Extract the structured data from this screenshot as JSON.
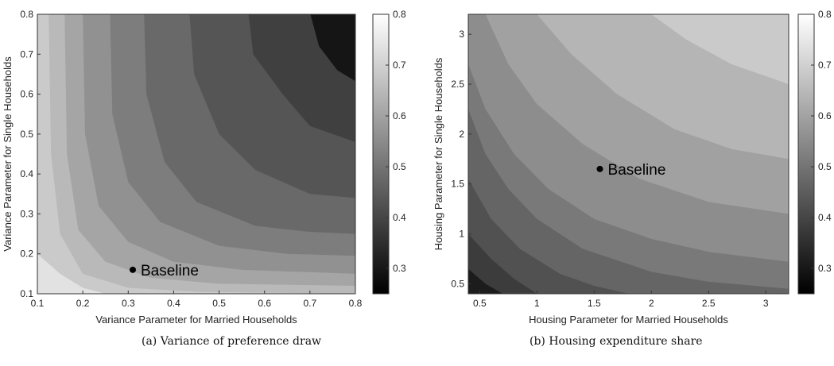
{
  "chart_data": [
    {
      "type": "contour",
      "caption": "(a) Variance of preference draw",
      "xlabel": "Variance Parameter for Married Households",
      "ylabel": "Variance  Parameter for Single Households",
      "xlim": [
        0.1,
        0.8
      ],
      "ylim": [
        0.1,
        0.8
      ],
      "xticks": [
        "0.1",
        "0.2",
        "0.3",
        "0.4",
        "0.5",
        "0.6",
        "0.7",
        "0.8"
      ],
      "yticks": [
        "0.1",
        "0.2",
        "0.3",
        "0.4",
        "0.5",
        "0.6",
        "0.7",
        "0.8"
      ],
      "colorbar": {
        "min": 0.25,
        "max": 0.8,
        "ticks": [
          "0.3",
          "0.4",
          "0.5",
          "0.6",
          "0.7",
          "0.8"
        ]
      },
      "trend": "decreasing",
      "color_hi": "#f2f2f2",
      "color_lo": "#141414",
      "contour_levels": [
        {
          "level": 0.72,
          "points": [
            [
              0.1,
              0.2
            ],
            [
              0.15,
              0.15
            ],
            [
              0.2,
              0.115
            ],
            [
              0.25,
              0.1
            ]
          ]
        },
        {
          "level": 0.68,
          "points": [
            [
              0.125,
              0.8
            ],
            [
              0.13,
              0.45
            ],
            [
              0.15,
              0.25
            ],
            [
              0.2,
              0.15
            ],
            [
              0.3,
              0.115
            ],
            [
              0.45,
              0.105
            ],
            [
              0.8,
              0.1
            ]
          ]
        },
        {
          "level": 0.63,
          "points": [
            [
              0.16,
              0.8
            ],
            [
              0.165,
              0.45
            ],
            [
              0.19,
              0.26
            ],
            [
              0.25,
              0.18
            ],
            [
              0.35,
              0.14
            ],
            [
              0.5,
              0.125
            ],
            [
              0.8,
              0.12
            ]
          ]
        },
        {
          "level": 0.58,
          "points": [
            [
              0.2,
              0.8
            ],
            [
              0.205,
              0.5
            ],
            [
              0.235,
              0.32
            ],
            [
              0.3,
              0.23
            ],
            [
              0.4,
              0.18
            ],
            [
              0.55,
              0.16
            ],
            [
              0.8,
              0.15
            ]
          ]
        },
        {
          "level": 0.53,
          "points": [
            [
              0.26,
              0.8
            ],
            [
              0.265,
              0.55
            ],
            [
              0.3,
              0.38
            ],
            [
              0.37,
              0.28
            ],
            [
              0.5,
              0.22
            ],
            [
              0.65,
              0.2
            ],
            [
              0.8,
              0.195
            ]
          ]
        },
        {
          "level": 0.48,
          "points": [
            [
              0.335,
              0.8
            ],
            [
              0.34,
              0.6
            ],
            [
              0.38,
              0.43
            ],
            [
              0.45,
              0.33
            ],
            [
              0.58,
              0.27
            ],
            [
              0.7,
              0.255
            ],
            [
              0.8,
              0.25
            ]
          ]
        },
        {
          "level": 0.43,
          "points": [
            [
              0.435,
              0.8
            ],
            [
              0.445,
              0.65
            ],
            [
              0.5,
              0.5
            ],
            [
              0.58,
              0.41
            ],
            [
              0.7,
              0.35
            ],
            [
              0.8,
              0.34
            ]
          ]
        },
        {
          "level": 0.38,
          "points": [
            [
              0.565,
              0.8
            ],
            [
              0.575,
              0.7
            ],
            [
              0.64,
              0.6
            ],
            [
              0.7,
              0.52
            ],
            [
              0.8,
              0.48
            ]
          ]
        },
        {
          "level": 0.33,
          "points": [
            [
              0.8,
              0.8
            ],
            [
              0.8,
              0.8
            ]
          ]
        }
      ],
      "baseline": {
        "x": 0.31,
        "y": 0.16,
        "label": "Baseline"
      }
    },
    {
      "type": "contour",
      "caption": "(b) Housing expenditure share",
      "xlabel": "Housing Parameter for Married Households",
      "ylabel": "Housing Parameter for Single Households",
      "xlim": [
        0.4,
        3.2
      ],
      "ylim": [
        0.4,
        3.2
      ],
      "xticks": [
        "0.5",
        "1",
        "1.5",
        "2",
        "2.5",
        "3"
      ],
      "yticks": [
        "0.5",
        "1",
        "1.5",
        "2",
        "2.5",
        "3"
      ],
      "colorbar": {
        "min": 0.25,
        "max": 0.8,
        "ticks": [
          "0.3",
          "0.4",
          "0.5",
          "0.6",
          "0.7",
          "0.8"
        ]
      },
      "trend": "increasing",
      "color_hi": "#e8e8e8",
      "color_lo": "#1a1a1a",
      "contour_levels": [
        {
          "level": 0.33,
          "points": [
            [
              0.4,
              0.65
            ],
            [
              0.55,
              0.5
            ],
            [
              0.7,
              0.4
            ]
          ]
        },
        {
          "level": 0.38,
          "points": [
            [
              0.4,
              1.0
            ],
            [
              0.6,
              0.75
            ],
            [
              0.8,
              0.55
            ],
            [
              1.0,
              0.4
            ]
          ]
        },
        {
          "level": 0.43,
          "points": [
            [
              0.4,
              1.55
            ],
            [
              0.6,
              1.15
            ],
            [
              0.85,
              0.85
            ],
            [
              1.2,
              0.6
            ],
            [
              1.5,
              0.48
            ],
            [
              1.8,
              0.4
            ]
          ]
        },
        {
          "level": 0.48,
          "points": [
            [
              0.4,
              2.25
            ],
            [
              0.55,
              1.8
            ],
            [
              0.75,
              1.45
            ],
            [
              1.0,
              1.15
            ],
            [
              1.4,
              0.85
            ],
            [
              2.0,
              0.62
            ],
            [
              2.5,
              0.52
            ],
            [
              3.2,
              0.45
            ]
          ]
        },
        {
          "level": 0.53,
          "points": [
            [
              0.4,
              2.7
            ],
            [
              0.55,
              2.25
            ],
            [
              0.8,
              1.8
            ],
            [
              1.1,
              1.45
            ],
            [
              1.5,
              1.15
            ],
            [
              2.0,
              0.95
            ],
            [
              2.5,
              0.82
            ],
            [
              3.2,
              0.72
            ]
          ]
        },
        {
          "level": 0.58,
          "points": [
            [
              0.55,
              3.2
            ],
            [
              0.75,
              2.7
            ],
            [
              1.0,
              2.3
            ],
            [
              1.4,
              1.9
            ],
            [
              1.9,
              1.55
            ],
            [
              2.5,
              1.32
            ],
            [
              3.2,
              1.2
            ]
          ]
        },
        {
          "level": 0.63,
          "points": [
            [
              1.0,
              3.2
            ],
            [
              1.3,
              2.8
            ],
            [
              1.7,
              2.4
            ],
            [
              2.2,
              2.05
            ],
            [
              2.7,
              1.85
            ],
            [
              3.2,
              1.75
            ]
          ]
        },
        {
          "level": 0.68,
          "points": [
            [
              2.0,
              3.2
            ],
            [
              2.3,
              2.95
            ],
            [
              2.7,
              2.7
            ],
            [
              3.2,
              2.5
            ]
          ]
        }
      ],
      "baseline": {
        "x": 1.55,
        "y": 1.65,
        "label": "Baseline"
      }
    }
  ]
}
